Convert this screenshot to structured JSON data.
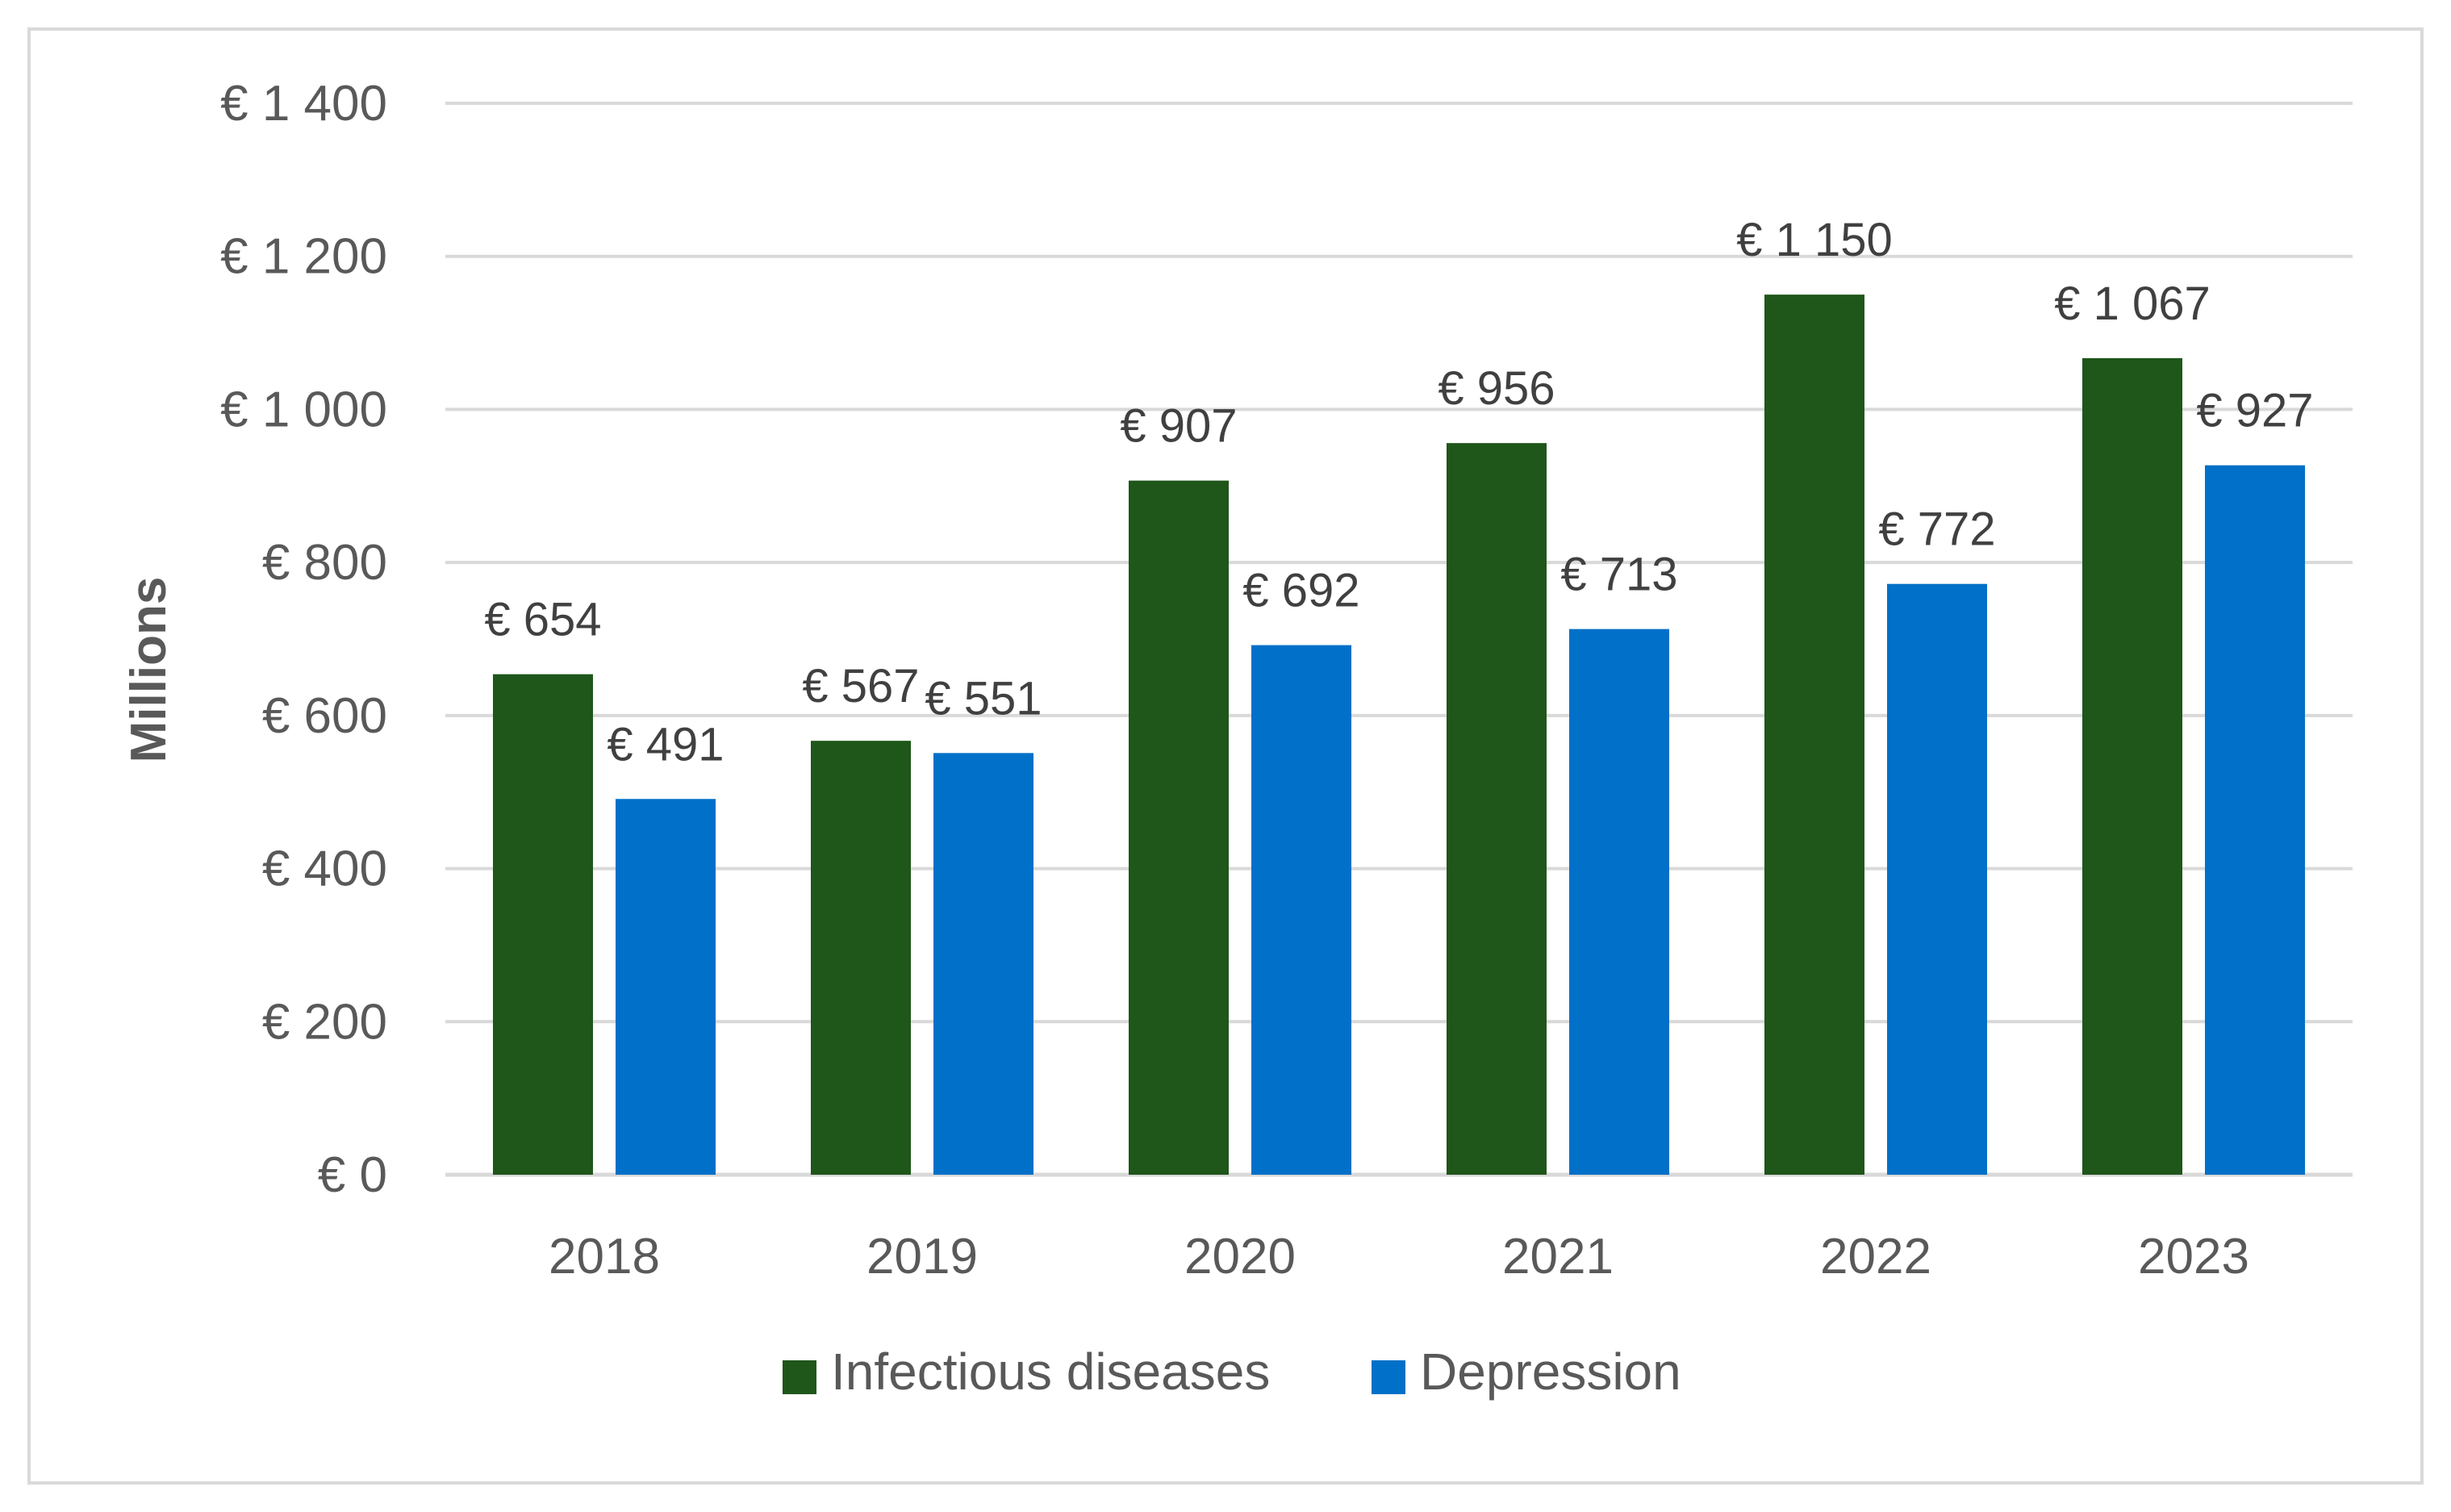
{
  "chart_data": {
    "type": "bar",
    "title": "",
    "xlabel": "",
    "ylabel": "Millions",
    "ylim": [
      0,
      1400
    ],
    "y_ticks": [
      0,
      200,
      400,
      600,
      800,
      1000,
      1200,
      1400
    ],
    "y_tick_labels": [
      "€  0",
      "€  200",
      "€  400",
      "€  600",
      "€  800",
      "€ 1 000",
      "€ 1 200",
      "€ 1 400"
    ],
    "categories": [
      "2018",
      "2019",
      "2020",
      "2021",
      "2022",
      "2023"
    ],
    "grid": true,
    "legend_position": "bottom",
    "series": [
      {
        "name": "Infectious diseases",
        "color": "#1f561a",
        "values": [
          654,
          567,
          907,
          956,
          1150,
          1067
        ],
        "labels": [
          "€  654",
          "€  567",
          "€  907",
          "€  956",
          "€ 1 150",
          "€ 1 067"
        ]
      },
      {
        "name": "Depression",
        "color": "#0070c8",
        "values": [
          491,
          551,
          692,
          713,
          772,
          927
        ],
        "labels": [
          "€  491",
          "€  551",
          "€  692",
          "€  713",
          "€  772",
          "€  927"
        ]
      }
    ],
    "colors": {
      "gridline": "#d9d9d9",
      "axis": "#d9d9d9"
    }
  }
}
